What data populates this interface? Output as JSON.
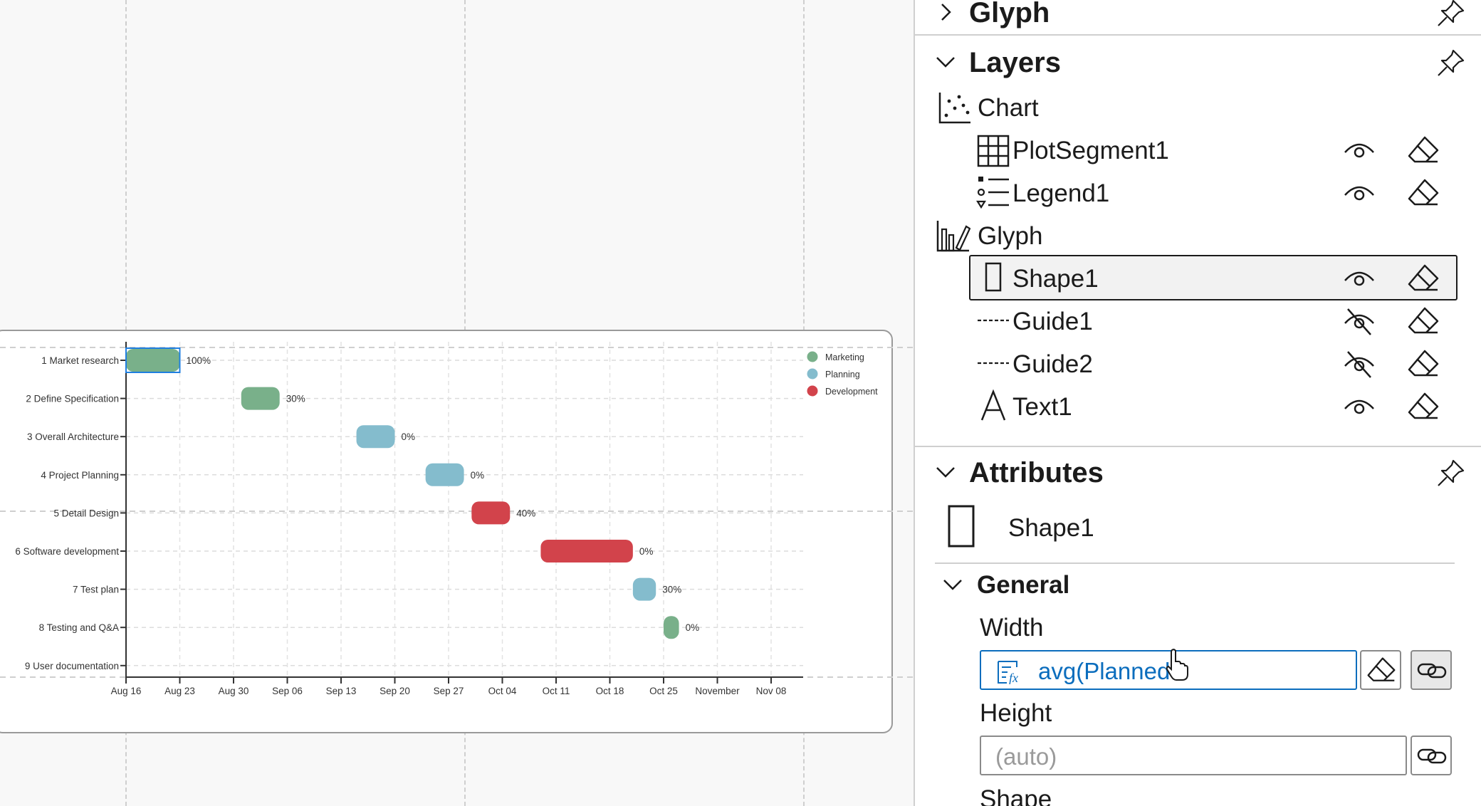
{
  "canvas": {
    "chart_data": {
      "type": "gantt",
      "tasks": [
        {
          "label": "1 Market research",
          "start": "Aug 16",
          "end": "Aug 23",
          "group": "Marketing",
          "progress": "100%"
        },
        {
          "label": "2 Define Specification",
          "start": "Aug 31",
          "end": "Sep 05",
          "group": "Marketing",
          "progress": "30%"
        },
        {
          "label": "3 Overall Architecture",
          "start": "Sep 15",
          "end": "Sep 20",
          "group": "Planning",
          "progress": "0%"
        },
        {
          "label": "4 Project Planning",
          "start": "Sep 24",
          "end": "Sep 29",
          "group": "Planning",
          "progress": "0%"
        },
        {
          "label": "5 Detail Design",
          "start": "Sep 30",
          "end": "Oct 05",
          "group": "Development",
          "progress": "40%"
        },
        {
          "label": "6 Software development",
          "start": "Oct 09",
          "end": "Oct 21",
          "group": "Development",
          "progress": "0%"
        },
        {
          "label": "7 Test plan",
          "start": "Oct 21",
          "end": "Oct 24",
          "group": "Planning",
          "progress": "30%"
        },
        {
          "label": "8 Testing and Q&A",
          "start": "Oct 25",
          "end": "Oct 27",
          "group": "Marketing",
          "progress": "0%"
        },
        {
          "label": "9 User documentation",
          "start": "",
          "end": "",
          "group": "",
          "progress": ""
        }
      ],
      "x_ticks": [
        "Aug 16",
        "Aug 23",
        "Aug 30",
        "Sep 06",
        "Sep 13",
        "Sep 20",
        "Sep 27",
        "Oct 04",
        "Oct 11",
        "Oct 18",
        "Oct 25",
        "November",
        "Nov 08"
      ],
      "legend": [
        {
          "name": "Marketing",
          "color": "#79b08a"
        },
        {
          "name": "Planning",
          "color": "#84bccd"
        },
        {
          "name": "Development",
          "color": "#d2434b"
        }
      ],
      "legend_position": "top-right",
      "grid": true
    }
  },
  "panel": {
    "glyph_header": "Glyph",
    "layers_header": "Layers",
    "layers": {
      "chart": "Chart",
      "plot_segment": "PlotSegment1",
      "legend": "Legend1",
      "glyph": "Glyph",
      "shape": "Shape1",
      "guide1": "Guide1",
      "guide2": "Guide2",
      "text": "Text1"
    },
    "attributes_header": "Attributes",
    "attributes_object": "Shape1",
    "general_header": "General",
    "width_label": "Width",
    "width_value": "avg(Planned",
    "height_label": "Height",
    "height_placeholder": "(auto)",
    "shape_label": "Shape",
    "accent_color": "#0b6dbd"
  }
}
